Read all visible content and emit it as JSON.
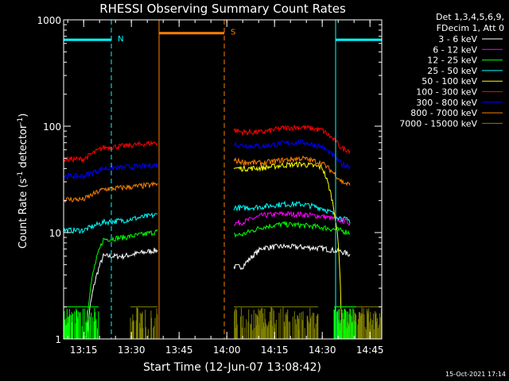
{
  "chart_data": {
    "type": "line",
    "title": "RHESSI Observing Summary Count Rates",
    "xlabel": "Start Time (12-Jun-07 13:08:42)",
    "ylabel_main": "Count Rate (s",
    "ylabel_sup1": "-1",
    "ylabel_mid": " detector",
    "ylabel_sup2": "-1",
    "ylabel_end": ")",
    "yscale": "log",
    "ylim": [
      1,
      1000
    ],
    "xlim_minutes": [
      0,
      100
    ],
    "xticks": [
      {
        "label": "13:15",
        "minute": 6.3
      },
      {
        "label": "13:30",
        "minute": 21.3
      },
      {
        "label": "13:45",
        "minute": 36.3
      },
      {
        "label": "14:00",
        "minute": 51.3
      },
      {
        "label": "14:15",
        "minute": 66.3
      },
      {
        "label": "14:30",
        "minute": 81.3
      },
      {
        "label": "14:45",
        "minute": 96.3
      }
    ],
    "yticks": [
      {
        "label": "1",
        "value": 1
      },
      {
        "label": "10",
        "value": 10
      },
      {
        "label": "100",
        "value": 100
      },
      {
        "label": "1000",
        "value": 1000
      }
    ],
    "legend_header": [
      "Det 1,3,4,5,6,9,",
      "FDecim 1, Att 0"
    ],
    "timestamp": "15-Oct-2021 17:14",
    "segments": [
      [
        0,
        29.5
      ],
      [
        53.5,
        90
      ]
    ],
    "series": [
      {
        "name": "3 - 6 keV",
        "color": "#ffffff",
        "levels": [
          0,
          0,
          6.0,
          6.0,
          6.5,
          7.0,
          6.5,
          4.8,
          4.7,
          4.8,
          7.2,
          7.4,
          7.3,
          7.1,
          6.6,
          5.6,
          0
        ]
      },
      {
        "name": "6 - 12 keV",
        "color": "#ff00ff",
        "levels": [
          0,
          0,
          0,
          0,
          0,
          0,
          0,
          12.5,
          12.0,
          12.5,
          14.5,
          15.0,
          14.8,
          14.2,
          13.0,
          11.5,
          0
        ]
      },
      {
        "name": "12 - 25 keV",
        "color": "#00ff00",
        "levels": [
          0,
          0,
          8.6,
          9.0,
          9.6,
          10.5,
          10.8,
          9.8,
          9.3,
          9.6,
          11.3,
          12.0,
          11.7,
          11.2,
          10.4,
          9.3,
          0
        ]
      },
      {
        "name": "25 - 50 keV",
        "color": "#00ffff",
        "levels": [
          10.5,
          10.5,
          12.5,
          13.0,
          14.0,
          15.0,
          16.0,
          18.5,
          17.5,
          17.0,
          17.5,
          18.5,
          18.5,
          17.0,
          13.5,
          12.0,
          10.5
        ]
      },
      {
        "name": "50 - 100 keV",
        "color": "#ffff00",
        "levels": [
          0,
          0,
          0,
          0,
          0,
          0,
          0,
          43.0,
          41.0,
          40.0,
          40.5,
          43.0,
          44.0,
          41.0,
          0,
          0,
          0
        ]
      },
      {
        "name": "100 - 300 keV",
        "color": "#ff0000",
        "levels": [
          49.0,
          49.0,
          63.0,
          65.0,
          68.0,
          71.0,
          74.0,
          105.0,
          97.0,
          88.0,
          88.0,
          96.0,
          98.0,
          92.0,
          62.0,
          55.0,
          53.0
        ]
      },
      {
        "name": "300 - 800 keV",
        "color": "#0000ff",
        "levels": [
          34.0,
          34.0,
          40.0,
          41.0,
          42.0,
          44.0,
          45.0,
          78.0,
          71.0,
          66.0,
          65.0,
          69.0,
          71.0,
          64.0,
          44.0,
          39.0,
          37.0
        ]
      },
      {
        "name": "800 - 7000 keV",
        "color": "#ff8000",
        "levels": [
          20.5,
          20.5,
          25.5,
          26.5,
          27.5,
          29.0,
          31.0,
          54.0,
          50.0,
          46.0,
          45.0,
          48.0,
          50.0,
          45.0,
          30.0,
          25.0,
          23.5
        ]
      },
      {
        "name": "7000 - 15000 keV",
        "color": "#808000",
        "levels": [
          0,
          0,
          0,
          0,
          0,
          0,
          0,
          0,
          0,
          0,
          0,
          0,
          0,
          0,
          0,
          0,
          0
        ]
      }
    ],
    "events": [
      {
        "label": "N",
        "color": "#00ffff",
        "start": 0,
        "end": 15,
        "level": 650
      },
      {
        "label": "S",
        "color": "#ff8000",
        "start": 30,
        "end": 50.5,
        "level": 750
      },
      {
        "label": "",
        "color": "#00ffff",
        "start": 85.5,
        "end": 100,
        "level": 650
      }
    ]
  }
}
